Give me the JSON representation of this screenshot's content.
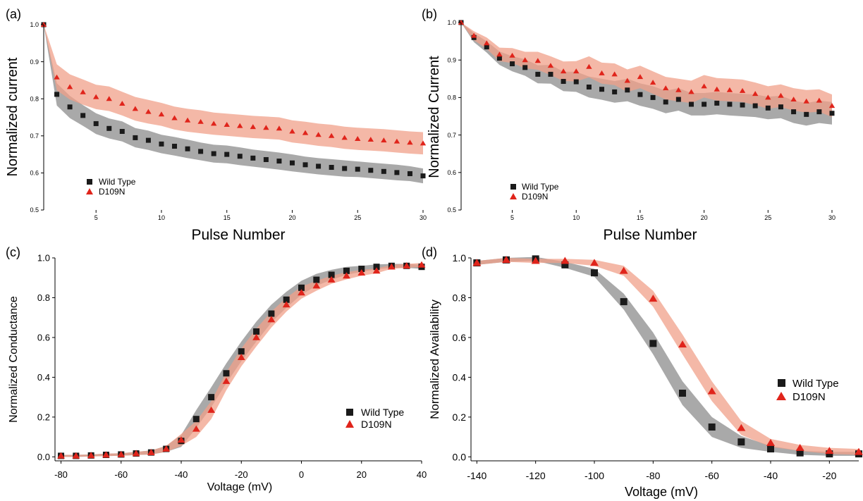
{
  "chart_data": [
    {
      "panel_label": "(a)",
      "type": "scatter",
      "xlabel": "Pulse Number",
      "ylabel": "Normalized current",
      "xlim": [
        1,
        30
      ],
      "ylim": [
        0.5,
        1.0
      ],
      "xticks": [
        5,
        10,
        15,
        20,
        25,
        30
      ],
      "yticks": [
        0.5,
        0.6,
        0.7,
        0.8,
        0.9,
        1.0
      ],
      "ytick_labels": [
        "0.5",
        "0.6",
        "0.7",
        "0.8",
        "0.9",
        "1.0"
      ],
      "legend": {
        "position": "bottom-left",
        "entries": [
          "Wild Type",
          "D109N"
        ]
      },
      "x": [
        1,
        2,
        3,
        4,
        5,
        6,
        7,
        8,
        9,
        10,
        11,
        12,
        13,
        14,
        15,
        16,
        17,
        18,
        19,
        20,
        21,
        22,
        23,
        24,
        25,
        26,
        27,
        28,
        29,
        30
      ],
      "series": [
        {
          "name": "Wild Type",
          "marker": "square",
          "color": "#1a1a1a",
          "band_color": "#8c8c8c",
          "values": [
            1.0,
            0.812,
            0.778,
            0.755,
            0.733,
            0.72,
            0.712,
            0.695,
            0.688,
            0.678,
            0.672,
            0.665,
            0.658,
            0.652,
            0.65,
            0.645,
            0.64,
            0.636,
            0.632,
            0.627,
            0.622,
            0.618,
            0.615,
            0.612,
            0.61,
            0.607,
            0.604,
            0.601,
            0.598,
            0.592
          ],
          "band_halfwidth": [
            0.0,
            0.03,
            0.03,
            0.028,
            0.028,
            0.027,
            0.027,
            0.026,
            0.026,
            0.025,
            0.025,
            0.025,
            0.024,
            0.024,
            0.024,
            0.024,
            0.023,
            0.023,
            0.023,
            0.023,
            0.022,
            0.022,
            0.022,
            0.022,
            0.021,
            0.021,
            0.021,
            0.021,
            0.02,
            0.02
          ]
        },
        {
          "name": "D109N",
          "marker": "triangle",
          "color": "#e0241b",
          "band_color": "#f0a08a",
          "values": [
            1.0,
            0.858,
            0.832,
            0.818,
            0.805,
            0.8,
            0.787,
            0.773,
            0.765,
            0.758,
            0.748,
            0.742,
            0.738,
            0.733,
            0.73,
            0.727,
            0.724,
            0.722,
            0.72,
            0.712,
            0.708,
            0.703,
            0.7,
            0.695,
            0.692,
            0.69,
            0.688,
            0.685,
            0.682,
            0.68
          ],
          "band_halfwidth": [
            0.0,
            0.035,
            0.034,
            0.034,
            0.033,
            0.033,
            0.032,
            0.032,
            0.032,
            0.031,
            0.031,
            0.031,
            0.031,
            0.03,
            0.03,
            0.03,
            0.03,
            0.03,
            0.03,
            0.03,
            0.03,
            0.03,
            0.03,
            0.03,
            0.03,
            0.03,
            0.03,
            0.03,
            0.03,
            0.03
          ]
        }
      ]
    },
    {
      "panel_label": "(b)",
      "type": "scatter",
      "xlabel": "Pulse Number",
      "ylabel": "Normalized Current",
      "xlim": [
        1,
        30
      ],
      "ylim": [
        0.5,
        1.0
      ],
      "xticks": [
        5,
        10,
        15,
        20,
        25,
        30
      ],
      "yticks": [
        0.5,
        0.6,
        0.7,
        0.8,
        0.9,
        1.0
      ],
      "ytick_labels": [
        "0.5",
        "0.6",
        "0.7",
        "0.8",
        "0.9",
        "1.0"
      ],
      "legend": {
        "position": "bottom-left",
        "entries": [
          "Wild Type",
          "D109N"
        ]
      },
      "x": [
        1,
        2,
        3,
        4,
        5,
        6,
        7,
        8,
        9,
        10,
        11,
        12,
        13,
        14,
        15,
        16,
        17,
        18,
        19,
        20,
        21,
        22,
        23,
        24,
        25,
        26,
        27,
        28,
        29,
        30
      ],
      "series": [
        {
          "name": "Wild Type",
          "marker": "square",
          "color": "#1a1a1a",
          "band_color": "#8c8c8c",
          "values": [
            1.0,
            0.96,
            0.935,
            0.905,
            0.89,
            0.88,
            0.862,
            0.862,
            0.843,
            0.842,
            0.828,
            0.822,
            0.815,
            0.82,
            0.808,
            0.8,
            0.788,
            0.795,
            0.782,
            0.782,
            0.785,
            0.782,
            0.78,
            0.778,
            0.772,
            0.775,
            0.762,
            0.755,
            0.762,
            0.758
          ],
          "band_halfwidth": [
            0.0,
            0.012,
            0.015,
            0.018,
            0.02,
            0.022,
            0.024,
            0.025,
            0.026,
            0.027,
            0.028,
            0.028,
            0.029,
            0.03,
            0.03,
            0.03,
            0.03,
            0.03,
            0.03,
            0.03,
            0.03,
            0.03,
            0.03,
            0.03,
            0.03,
            0.03,
            0.03,
            0.03,
            0.03,
            0.03
          ]
        },
        {
          "name": "D109N",
          "marker": "triangle",
          "color": "#e0241b",
          "band_color": "#f0a08a",
          "values": [
            1.0,
            0.965,
            0.945,
            0.915,
            0.912,
            0.9,
            0.898,
            0.885,
            0.87,
            0.87,
            0.882,
            0.865,
            0.862,
            0.845,
            0.855,
            0.84,
            0.825,
            0.82,
            0.815,
            0.83,
            0.822,
            0.82,
            0.818,
            0.81,
            0.8,
            0.805,
            0.795,
            0.79,
            0.792,
            0.778
          ],
          "band_halfwidth": [
            0.0,
            0.012,
            0.015,
            0.018,
            0.02,
            0.022,
            0.024,
            0.025,
            0.026,
            0.027,
            0.028,
            0.028,
            0.029,
            0.03,
            0.03,
            0.03,
            0.03,
            0.03,
            0.03,
            0.03,
            0.03,
            0.03,
            0.03,
            0.03,
            0.03,
            0.03,
            0.03,
            0.03,
            0.03,
            0.03
          ]
        }
      ]
    },
    {
      "panel_label": "(c)",
      "type": "scatter",
      "xlabel": "Voltage (mV)",
      "ylabel": "Normalized Conductance",
      "xlim": [
        -82,
        40
      ],
      "ylim": [
        -0.02,
        1.0
      ],
      "xticks": [
        -80,
        -60,
        -40,
        -20,
        0,
        20,
        40
      ],
      "yticks": [
        0.0,
        0.2,
        0.4,
        0.6,
        0.8,
        1.0
      ],
      "ytick_labels": [
        "0.0",
        "0.2",
        "0.4",
        "0.6",
        "0.8",
        "1.0"
      ],
      "legend": {
        "position": "bottom-right",
        "entries": [
          "Wild Type",
          "D109N"
        ]
      },
      "x": [
        -80,
        -75,
        -70,
        -65,
        -60,
        -55,
        -50,
        -45,
        -40,
        -35,
        -30,
        -25,
        -20,
        -15,
        -10,
        -5,
        0,
        5,
        10,
        15,
        20,
        25,
        30,
        35,
        40
      ],
      "series": [
        {
          "name": "Wild Type",
          "marker": "square",
          "color": "#1a1a1a",
          "band_color": "#8c8c8c",
          "values": [
            0.005,
            0.005,
            0.007,
            0.01,
            0.012,
            0.017,
            0.022,
            0.04,
            0.08,
            0.19,
            0.3,
            0.42,
            0.53,
            0.63,
            0.72,
            0.79,
            0.85,
            0.89,
            0.915,
            0.935,
            0.945,
            0.955,
            0.96,
            0.96,
            0.955
          ],
          "band_halfwidth": [
            0.005,
            0.005,
            0.005,
            0.006,
            0.006,
            0.008,
            0.01,
            0.015,
            0.03,
            0.045,
            0.05,
            0.05,
            0.05,
            0.05,
            0.045,
            0.04,
            0.035,
            0.03,
            0.025,
            0.02,
            0.015,
            0.012,
            0.01,
            0.01,
            0.01
          ]
        },
        {
          "name": "D109N",
          "marker": "triangle",
          "color": "#e0241b",
          "band_color": "#f0a08a",
          "values": [
            0.005,
            0.005,
            0.007,
            0.01,
            0.012,
            0.017,
            0.022,
            0.04,
            0.085,
            0.14,
            0.235,
            0.38,
            0.5,
            0.6,
            0.69,
            0.765,
            0.825,
            0.86,
            0.89,
            0.91,
            0.925,
            0.935,
            0.955,
            0.96,
            0.965
          ],
          "band_halfwidth": [
            0.005,
            0.005,
            0.005,
            0.006,
            0.006,
            0.008,
            0.01,
            0.015,
            0.03,
            0.04,
            0.045,
            0.045,
            0.045,
            0.045,
            0.04,
            0.035,
            0.03,
            0.025,
            0.02,
            0.018,
            0.015,
            0.012,
            0.01,
            0.01,
            0.01
          ]
        }
      ]
    },
    {
      "panel_label": "(d)",
      "type": "scatter",
      "xlabel": "Voltage (mV)",
      "ylabel": "Normalized Availability",
      "xlim": [
        -142,
        -10
      ],
      "ylim": [
        -0.02,
        1.0
      ],
      "xticks": [
        -140,
        -120,
        -100,
        -80,
        -60,
        -40,
        -20
      ],
      "yticks": [
        0.0,
        0.2,
        0.4,
        0.6,
        0.8,
        1.0
      ],
      "ytick_labels": [
        "0.0",
        "0.2",
        "0.4",
        "0.6",
        "0.8",
        "1.0"
      ],
      "legend": {
        "position": "right",
        "entries": [
          "Wild Type",
          "D109N"
        ]
      },
      "x": [
        -140,
        -130,
        -120,
        -110,
        -100,
        -90,
        -80,
        -70,
        -60,
        -50,
        -40,
        -30,
        -20,
        -10
      ],
      "series": [
        {
          "name": "Wild Type",
          "marker": "square",
          "color": "#1a1a1a",
          "band_color": "#8c8c8c",
          "values": [
            0.975,
            0.99,
            0.995,
            0.965,
            0.925,
            0.78,
            0.57,
            0.32,
            0.15,
            0.075,
            0.04,
            0.02,
            0.015,
            0.015
          ],
          "band_halfwidth": [
            0.01,
            0.01,
            0.01,
            0.015,
            0.02,
            0.04,
            0.055,
            0.06,
            0.05,
            0.03,
            0.015,
            0.01,
            0.01,
            0.01
          ]
        },
        {
          "name": "D109N",
          "marker": "triangle",
          "color": "#e0241b",
          "band_color": "#f0a08a",
          "values": [
            0.975,
            0.99,
            0.985,
            0.985,
            0.975,
            0.935,
            0.795,
            0.565,
            0.33,
            0.145,
            0.07,
            0.045,
            0.03,
            0.025
          ],
          "band_halfwidth": [
            0.01,
            0.01,
            0.01,
            0.01,
            0.015,
            0.025,
            0.04,
            0.05,
            0.05,
            0.035,
            0.02,
            0.015,
            0.015,
            0.015
          ]
        }
      ]
    }
  ]
}
